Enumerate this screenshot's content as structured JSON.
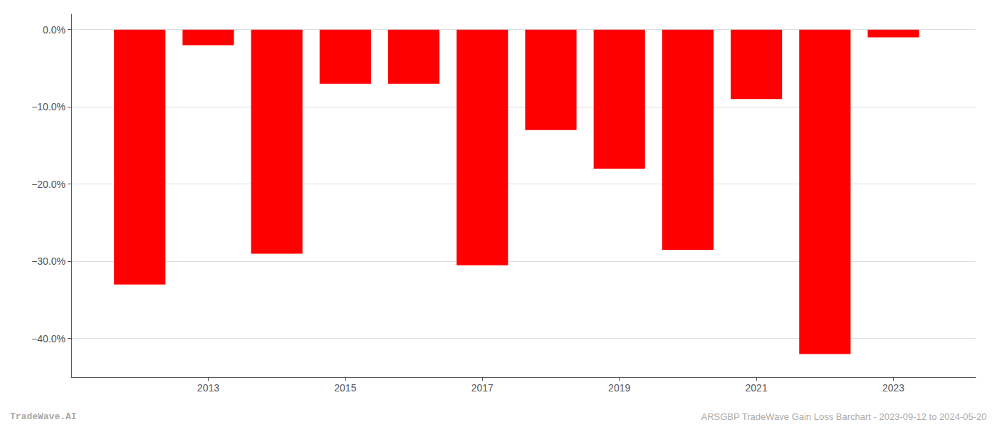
{
  "chart_data": {
    "type": "bar",
    "x": [
      2012,
      2013,
      2014,
      2015,
      2016,
      2017,
      2018,
      2019,
      2020,
      2021,
      2022,
      2023
    ],
    "values": [
      -33.0,
      -2.0,
      -29.0,
      -7.0,
      -7.0,
      -30.5,
      -13.0,
      -18.0,
      -28.5,
      -9.0,
      -42.0,
      -1.0
    ],
    "color": "#ff0000",
    "xlim": [
      2011.0,
      2024.2
    ],
    "xticks": [
      2013,
      2015,
      2017,
      2019,
      2021,
      2023
    ],
    "ylim": [
      -45,
      2
    ],
    "yticks": [
      {
        "value": 0,
        "label": "0.0%"
      },
      {
        "value": -10,
        "label": "−10.0%"
      },
      {
        "value": -20,
        "label": "−20.0%"
      },
      {
        "value": -30,
        "label": "−30.0%"
      },
      {
        "value": -40,
        "label": "−40.0%"
      }
    ],
    "grid": true,
    "annotations": [
      "TradeWave.AI",
      "ARSGBP TradeWave Gain Loss Barchart - 2023-09-12 to 2024-05-20"
    ]
  }
}
